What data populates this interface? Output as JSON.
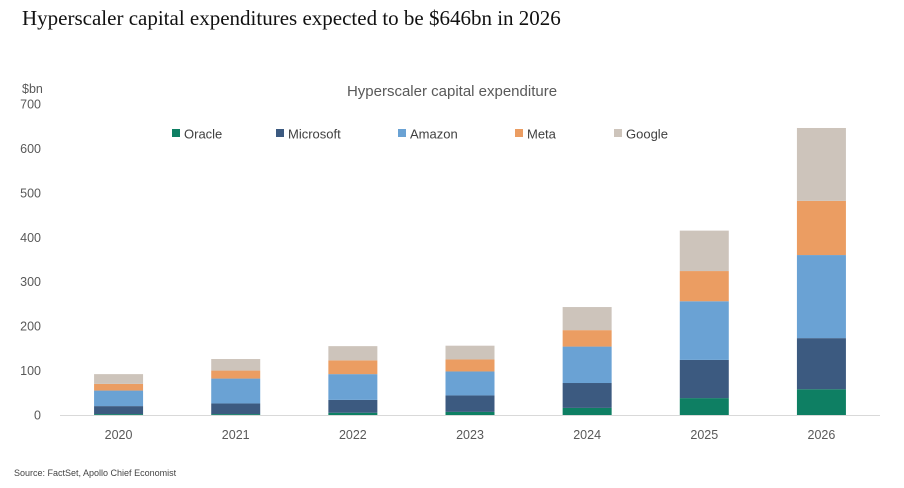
{
  "headline": "Hyperscaler capital expenditures expected to be $646bn in 2026",
  "source": "Source: FactSet, Apollo Chief Economist",
  "chart_data": {
    "type": "bar",
    "stacked": true,
    "title": "Hyperscaler capital expenditure",
    "ylabel": "$bn",
    "xlabel": "",
    "ylim": [
      0,
      700
    ],
    "yticks": [
      0,
      100,
      200,
      300,
      400,
      500,
      600,
      700
    ],
    "grid": false,
    "legend_position": "top",
    "categories": [
      "2020",
      "2021",
      "2022",
      "2023",
      "2024",
      "2025",
      "2026"
    ],
    "series": [
      {
        "name": "Oracle",
        "color": "#0e7f63",
        "values": [
          2,
          2,
          5,
          7,
          16,
          38,
          58
        ]
      },
      {
        "name": "Microsoft",
        "color": "#3c5a80",
        "values": [
          18,
          24,
          29,
          37,
          56,
          86,
          115
        ]
      },
      {
        "name": "Amazon",
        "color": "#6aa2d4",
        "values": [
          35,
          56,
          58,
          54,
          82,
          132,
          187
        ]
      },
      {
        "name": "Meta",
        "color": "#eb9d62",
        "values": [
          15,
          18,
          31,
          27,
          37,
          68,
          122
        ]
      },
      {
        "name": "Google",
        "color": "#cdc4bb",
        "values": [
          22,
          26,
          32,
          31,
          52,
          91,
          164
        ]
      }
    ]
  }
}
